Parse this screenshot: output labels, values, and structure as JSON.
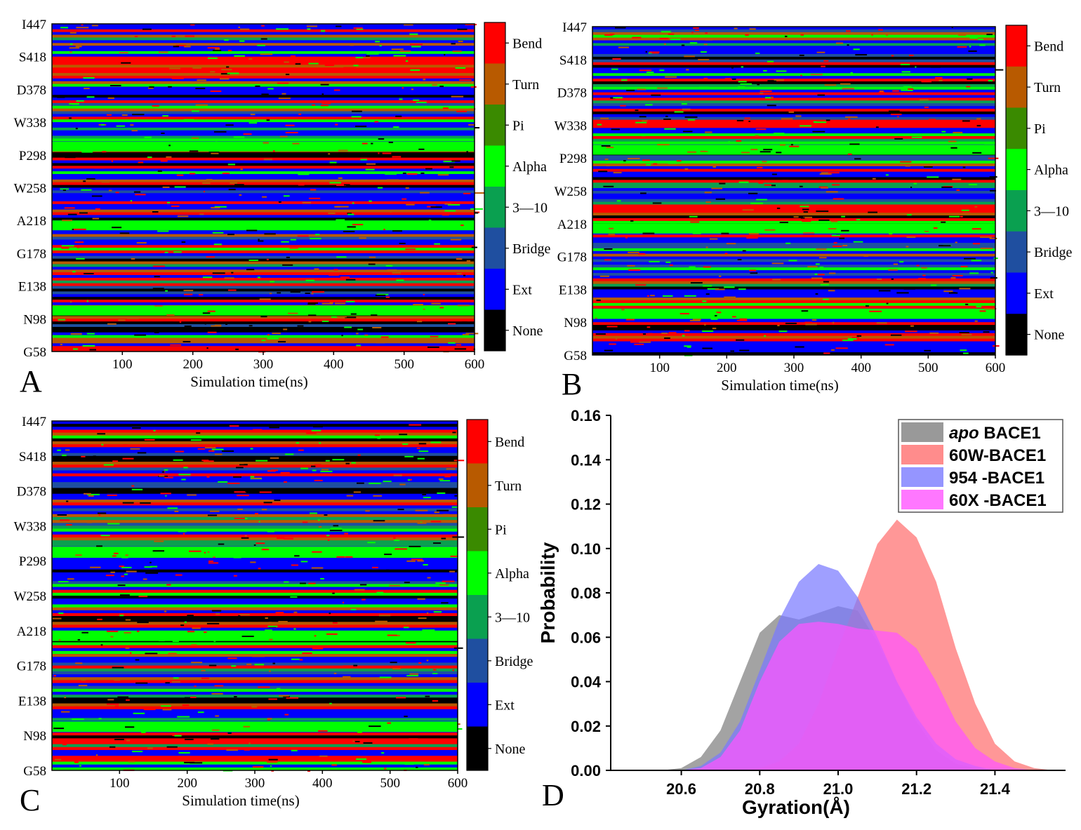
{
  "figure": {
    "colors": {
      "none": "#000000",
      "ext": "#0000ff",
      "bridge": "#1f4fa0",
      "three10": "#0aa050",
      "alpha": "#00ff00",
      "pi": "#3a8a00",
      "turn": "#b85a00",
      "bend": "#ff0000"
    },
    "dssp_legend": [
      "Bend",
      "Turn",
      "Pi",
      "Alpha",
      "3—10",
      "Bridge",
      "Ext",
      "None"
    ],
    "dssp_legend_colors": [
      "#ff0000",
      "#b85a00",
      "#3a8a00",
      "#00ff00",
      "#0aa050",
      "#1f4fa0",
      "#0000ff",
      "#000000"
    ]
  },
  "chart_data": [
    {
      "type": "heatmap",
      "panel": "A",
      "xlabel": "Simulation time(ns)",
      "xticks": [
        100,
        200,
        300,
        400,
        500,
        600
      ],
      "xlim": [
        0,
        600
      ],
      "yticks": [
        "I447",
        "S418",
        "D378",
        "W338",
        "P298",
        "W258",
        "A218",
        "G178",
        "E138",
        "N98",
        "G58"
      ],
      "legend": [
        "Bend",
        "Turn",
        "Pi",
        "Alpha",
        "3—10",
        "Bridge",
        "Ext",
        "None"
      ]
    },
    {
      "type": "heatmap",
      "panel": "B",
      "xlabel": "Simulation time(ns)",
      "xticks": [
        100,
        200,
        300,
        400,
        500,
        600
      ],
      "xlim": [
        0,
        600
      ],
      "yticks": [
        "I447",
        "S418",
        "D378",
        "W338",
        "P298",
        "W258",
        "A218",
        "G178",
        "E138",
        "N98",
        "G58"
      ],
      "legend": [
        "Bend",
        "Turn",
        "Pi",
        "Alpha",
        "3—10",
        "Bridge",
        "Ext",
        "None"
      ]
    },
    {
      "type": "heatmap",
      "panel": "C",
      "xlabel": "Simulation time(ns)",
      "xticks": [
        100,
        200,
        300,
        400,
        500,
        600
      ],
      "xlim": [
        0,
        600
      ],
      "yticks": [
        "I447",
        "S418",
        "D378",
        "W338",
        "P298",
        "W258",
        "A218",
        "G178",
        "E138",
        "N98",
        "G58"
      ],
      "legend": [
        "Bend",
        "Turn",
        "Pi",
        "Alpha",
        "3—10",
        "Bridge",
        "Ext",
        "None"
      ]
    },
    {
      "type": "area",
      "panel": "D",
      "xlabel": "Gyration(Å)",
      "ylabel": "Probability",
      "xlim": [
        20.42,
        21.58
      ],
      "ylim": [
        0,
        0.16
      ],
      "xticks": [
        "20.6",
        "20.8",
        "21.0",
        "21.2",
        "21.4"
      ],
      "yticks": [
        "0.00",
        "0.02",
        "0.04",
        "0.06",
        "0.08",
        "0.10",
        "0.12",
        "0.14",
        "0.16"
      ],
      "x": [
        20.55,
        20.6,
        20.65,
        20.7,
        20.75,
        20.8,
        20.85,
        20.9,
        20.95,
        21.0,
        21.05,
        21.1,
        21.15,
        21.2,
        21.25,
        21.3,
        21.35,
        21.4,
        21.45,
        21.5,
        21.55
      ],
      "series": [
        {
          "name_italic": "apo",
          "name": "BACE1",
          "color": "#808080",
          "values": [
            0.0,
            0.001,
            0.006,
            0.018,
            0.04,
            0.062,
            0.07,
            0.068,
            0.071,
            0.074,
            0.072,
            0.058,
            0.04,
            0.022,
            0.009,
            0.003,
            0.001,
            0.0,
            0.0,
            0.0,
            0.0
          ]
        },
        {
          "name": "60W-BACE1",
          "color": "#ff6f6f",
          "values": [
            0.0,
            0.0,
            0.0,
            0.0,
            0.0,
            0.001,
            0.004,
            0.012,
            0.03,
            0.055,
            0.078,
            0.102,
            0.113,
            0.105,
            0.085,
            0.055,
            0.03,
            0.012,
            0.004,
            0.001,
            0.0
          ]
        },
        {
          "name": "954 -BACE1",
          "color": "#7a7aff",
          "values": [
            0.0,
            0.0,
            0.002,
            0.008,
            0.022,
            0.045,
            0.068,
            0.085,
            0.093,
            0.09,
            0.078,
            0.06,
            0.04,
            0.024,
            0.012,
            0.005,
            0.002,
            0.0,
            0.0,
            0.0,
            0.0
          ]
        },
        {
          "name": "60X -BACE1",
          "color": "#ff55ff",
          "values": [
            0.0,
            0.0,
            0.001,
            0.006,
            0.018,
            0.04,
            0.058,
            0.066,
            0.067,
            0.066,
            0.064,
            0.063,
            0.062,
            0.055,
            0.04,
            0.022,
            0.01,
            0.004,
            0.001,
            0.0,
            0.0
          ]
        }
      ]
    }
  ],
  "panel_labels": [
    "A",
    "B",
    "C",
    "D"
  ]
}
